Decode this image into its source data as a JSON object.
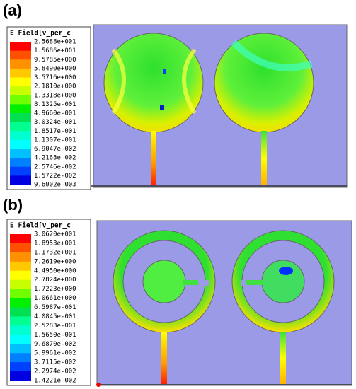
{
  "panels": [
    {
      "label": "(a)",
      "legend": {
        "title": "E Field[v_per_c",
        "values": [
          "2.5688e+001",
          "1.5686e+001",
          "9.5785e+000",
          "5.8490e+000",
          "3.5716e+000",
          "2.1810e+000",
          "1.3318e+000",
          "8.1325e-001",
          "4.9660e-001",
          "3.0324e-001",
          "1.8517e-001",
          "1.1307e-001",
          "6.9047e-002",
          "4.2163e-002",
          "2.5746e-002",
          "1.5722e-002",
          "9.6002e-003"
        ]
      }
    },
    {
      "label": "(b)",
      "legend": {
        "title": "E Field[v_per_c",
        "values": [
          "3.0620e+001",
          "1.8953e+001",
          "1.1732e+001",
          "7.2619e+000",
          "4.4950e+000",
          "2.7824e+000",
          "1.7223e+000",
          "1.0661e+000",
          "6.5987e-001",
          "4.0845e-001",
          "2.5283e-001",
          "1.5650e-001",
          "9.6870e-002",
          "5.9961e-002",
          "3.7115e-002",
          "2.2974e-002",
          "1.4221e-002"
        ]
      }
    }
  ]
}
